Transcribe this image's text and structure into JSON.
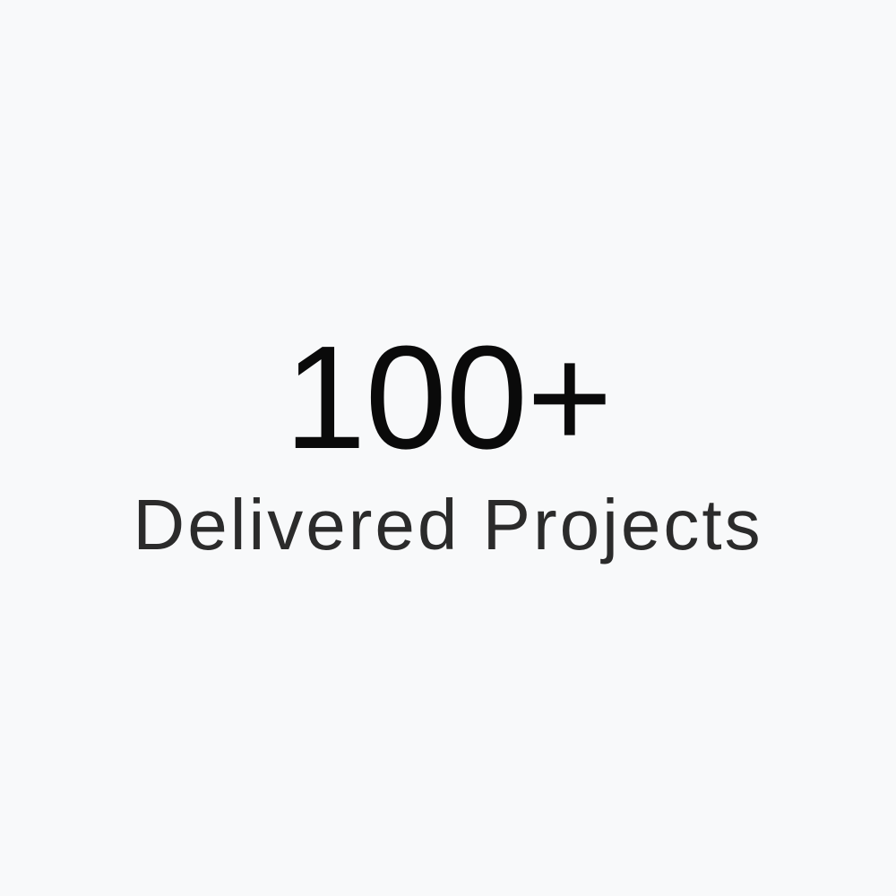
{
  "stat": {
    "number": "100+",
    "label": "Delivered Projects"
  },
  "colors": {
    "background": "#f8f9fa",
    "number": "#0a0a0a",
    "label": "#2b2b2b"
  }
}
